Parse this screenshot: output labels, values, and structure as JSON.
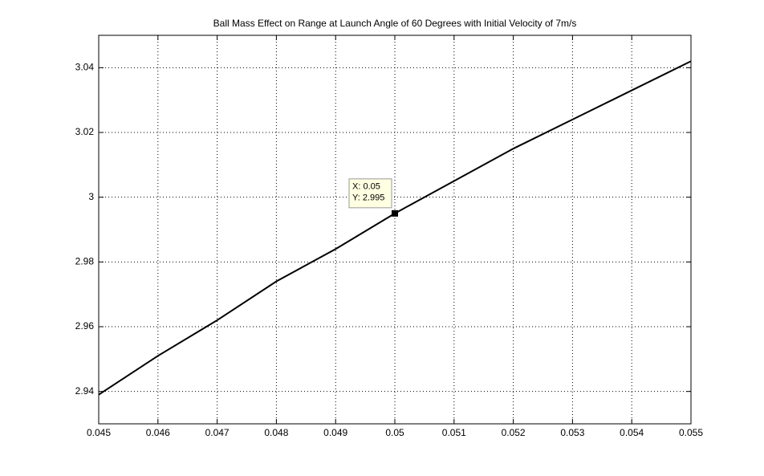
{
  "chart_data": {
    "type": "line",
    "title": "Ball Mass Effect on Range at Launch Angle of 60 Degrees with Initial Velocity of 7m/s",
    "x": [
      0.045,
      0.046,
      0.047,
      0.048,
      0.049,
      0.05,
      0.051,
      0.052,
      0.053,
      0.054,
      0.055
    ],
    "series": [
      {
        "color": "#000000",
        "values": [
          2.939,
          2.951,
          2.962,
          2.974,
          2.984,
          2.995,
          3.005,
          3.015,
          3.024,
          3.033,
          3.042
        ]
      }
    ],
    "xlim": [
      0.045,
      0.055
    ],
    "xticks": [
      0.045,
      0.046,
      0.047,
      0.048,
      0.049,
      0.05,
      0.051,
      0.052,
      0.053,
      0.054,
      0.055
    ],
    "ylim": [
      2.93,
      3.05
    ],
    "yticks": [
      2.94,
      2.96,
      2.98,
      3,
      3.02,
      3.04
    ],
    "grid": true,
    "annotations": [
      "X: 0.05",
      "Y: 2.995"
    ]
  }
}
